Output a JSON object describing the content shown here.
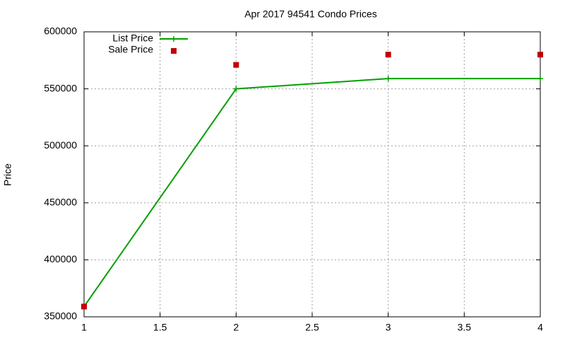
{
  "chart_data": {
    "type": "line",
    "title": "Apr 2017 94541 Condo Prices",
    "y_label": "Price",
    "x": [
      1,
      2,
      3,
      4
    ],
    "series": [
      {
        "name": "List Price",
        "color": "#00a000",
        "style": "linespoints",
        "values": [
          359000,
          550000,
          559000,
          559000
        ]
      },
      {
        "name": "Sale Price",
        "color": "#c00000",
        "style": "points",
        "values": [
          359000,
          571000,
          580000,
          580000
        ]
      }
    ],
    "xlim": [
      1,
      4
    ],
    "xticks": [
      1,
      1.5,
      2,
      2.5,
      3,
      3.5,
      4
    ],
    "ylim": [
      350000,
      600000
    ],
    "yticks": [
      350000,
      400000,
      450000,
      500000,
      550000,
      600000
    ],
    "grid": true,
    "legend": "top-left"
  }
}
